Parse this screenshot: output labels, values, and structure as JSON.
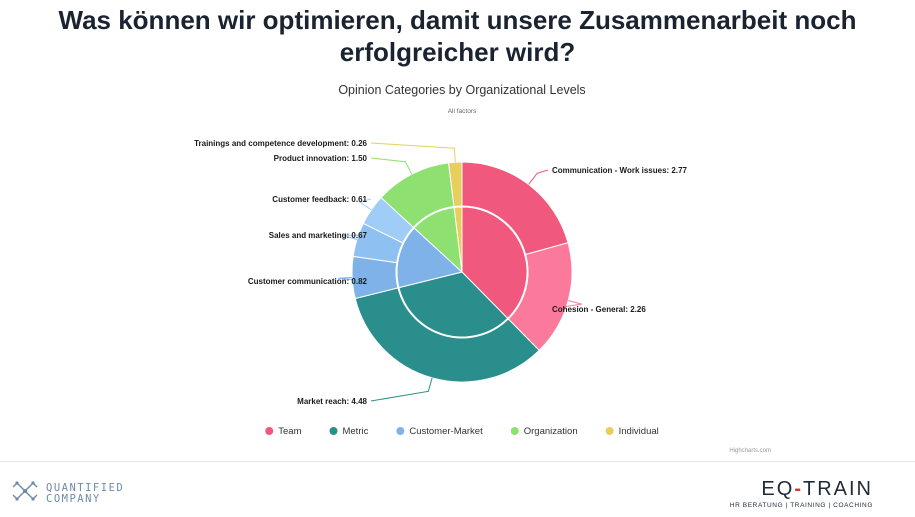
{
  "slide": {
    "title_line1": "Was können wir optimieren, damit unsere Zusammenarbeit noch",
    "title_line2": "erfolgreicher wird?"
  },
  "chart_data": {
    "type": "pie",
    "title": "Opinion Categories by Organizational Levels",
    "subtitle": "All factors",
    "credits": "Highcharts.com",
    "legend_position": "bottom",
    "inner_ring": [
      {
        "name": "Team",
        "value": 5.03,
        "color": "#f0587e"
      },
      {
        "name": "Metric",
        "value": 4.48,
        "color": "#2a8f8c"
      },
      {
        "name": "Customer-Market",
        "value": 2.1,
        "color": "#7fb2e8"
      },
      {
        "name": "Organization",
        "value": 1.5,
        "color": "#8ee070"
      },
      {
        "name": "Individual",
        "value": 0.26,
        "color": "#e8cf5c"
      }
    ],
    "outer_ring": [
      {
        "label": "Communication - Work issues: 2.77",
        "value": 2.77,
        "group": "Team",
        "color": "#f0587e"
      },
      {
        "label": "Cohesion - General: 2.26",
        "value": 2.26,
        "group": "Team",
        "color": "#fb7a9c"
      },
      {
        "label": "Market reach: 4.48",
        "value": 4.48,
        "group": "Metric",
        "color": "#2a8f8c"
      },
      {
        "label": "Customer communication: 0.82",
        "value": 0.82,
        "group": "Customer-Market",
        "color": "#7fb2e8"
      },
      {
        "label": "Sales and marketing: 0.67",
        "value": 0.67,
        "group": "Customer-Market",
        "color": "#8ec0f2"
      },
      {
        "label": "Customer feedback: 0.61",
        "value": 0.61,
        "group": "Customer-Market",
        "color": "#9fcdf7"
      },
      {
        "label": "Product innovation: 1.50",
        "value": 1.5,
        "group": "Organization",
        "color": "#8ee070"
      },
      {
        "label": "Trainings and competence development: 0.26",
        "value": 0.26,
        "group": "Individual",
        "color": "#e8cf5c"
      }
    ],
    "legend": [
      {
        "name": "Team",
        "color": "#f0587e"
      },
      {
        "name": "Metric",
        "color": "#2a8f8c"
      },
      {
        "name": "Customer-Market",
        "color": "#7fb2e8"
      },
      {
        "name": "Organization",
        "color": "#8ee070"
      },
      {
        "name": "Individual",
        "color": "#e8cf5c"
      }
    ]
  },
  "footer": {
    "left_logo": {
      "line1": "QUANTIFIED",
      "line2": "COMPANY",
      "icon": "molecule-icon",
      "color": "#6e8aa8"
    },
    "right_logo": {
      "name_left": "EQ",
      "dash": "-",
      "name_right": "TRAIN",
      "tagline": "HR BERATUNG | TRAINING | COACHING",
      "accent": "#e0342b"
    }
  }
}
